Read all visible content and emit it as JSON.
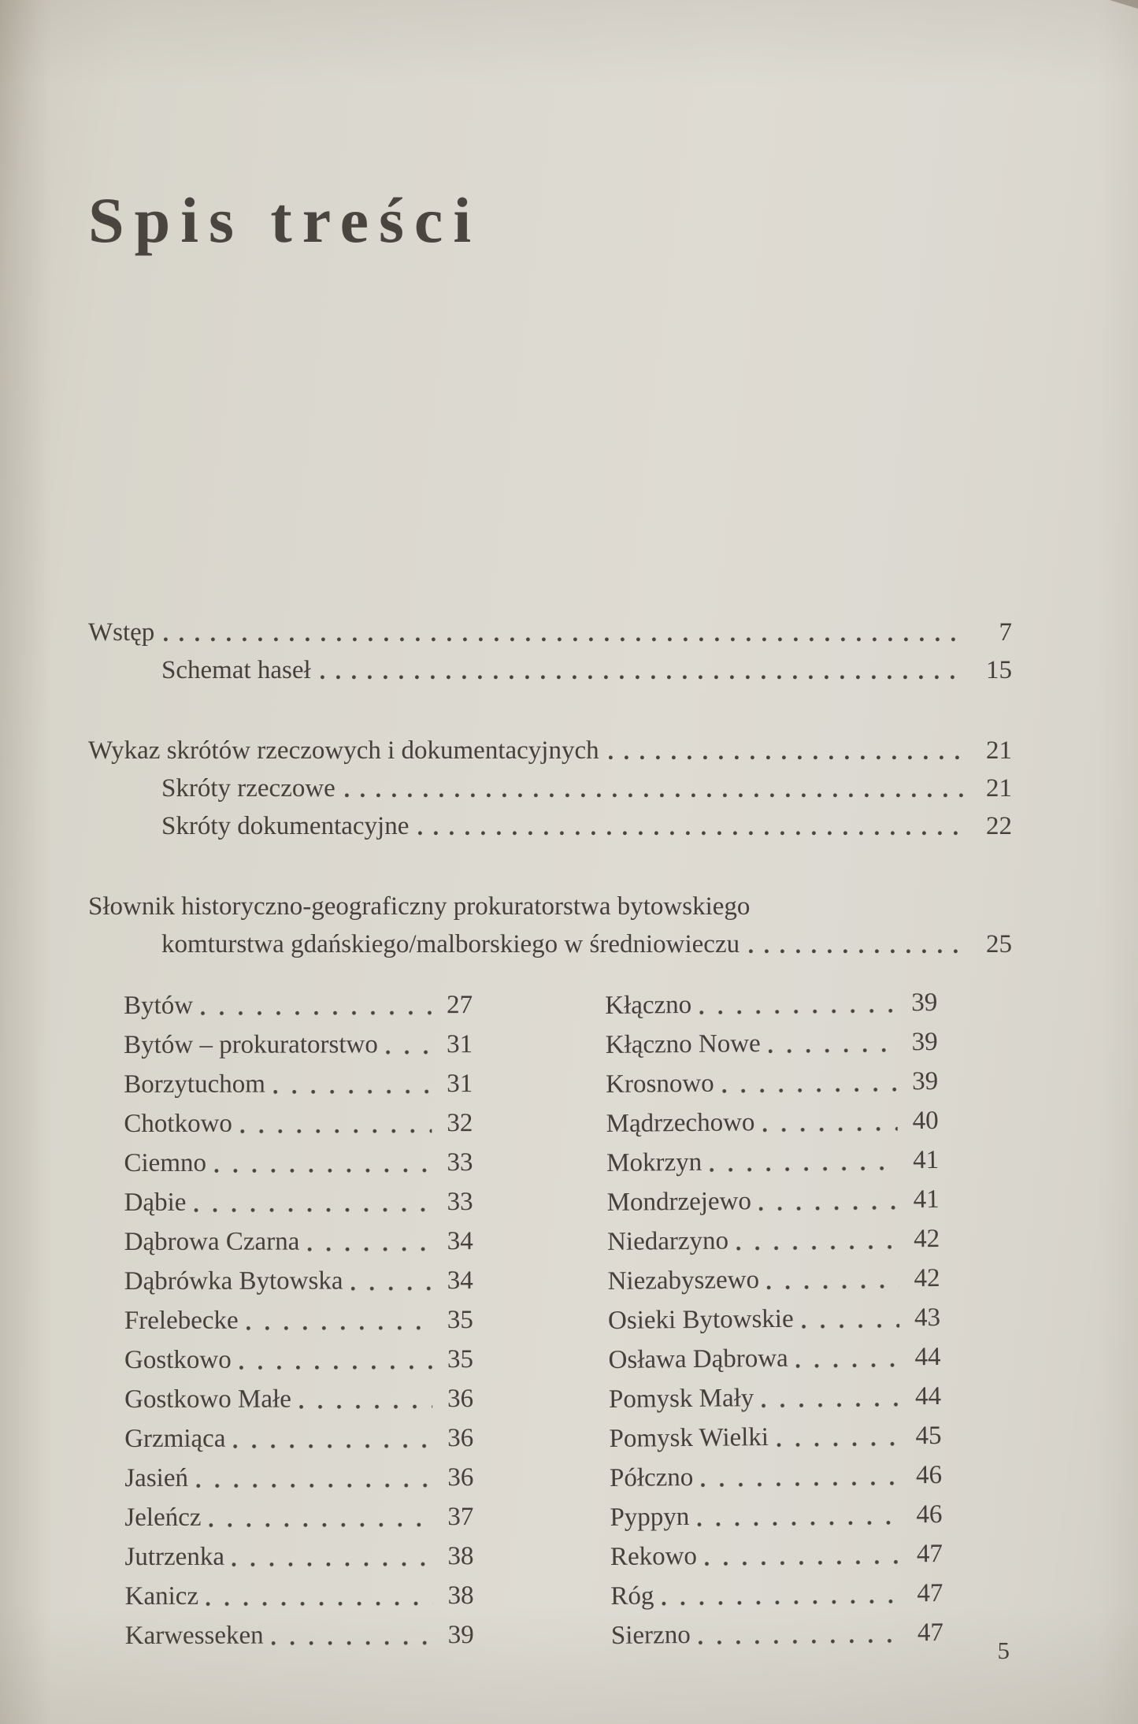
{
  "page": {
    "title": "Spis treści",
    "folio": "5"
  },
  "toc": {
    "main_rows": [
      {
        "label": "Wstęp",
        "page": "7"
      },
      {
        "label": "Schemat haseł",
        "page": "15",
        "indent": true
      },
      {
        "label": "Wykaz skrótów rzeczowych i dokumentacyjnych",
        "page": "21",
        "gap": true
      },
      {
        "label": "Skróty rzeczowe",
        "page": "21",
        "indent": true
      },
      {
        "label": "Skróty dokumentacyjne",
        "page": "22",
        "indent": true
      },
      {
        "label": "Słownik historyczno-geograficzny prokuratorstwa bytowskiego",
        "gap": true
      },
      {
        "label": "komturstwa gdańskiego/malborskiego w średniowieczu",
        "page": "25",
        "indent": true
      }
    ],
    "entries_left": [
      {
        "label": "Bytów",
        "page": "27"
      },
      {
        "label": "Bytów – prokuratorstwo",
        "page": "31"
      },
      {
        "label": "Borzytuchom",
        "page": "31"
      },
      {
        "label": "Chotkowo",
        "page": "32"
      },
      {
        "label": "Ciemno",
        "page": "33"
      },
      {
        "label": "Dąbie",
        "page": "33"
      },
      {
        "label": "Dąbrowa Czarna",
        "page": "34"
      },
      {
        "label": "Dąbrówka Bytowska",
        "page": "34"
      },
      {
        "label": "Frelebecke",
        "page": "35"
      },
      {
        "label": "Gostkowo",
        "page": "35"
      },
      {
        "label": "Gostkowo Małe",
        "page": "36"
      },
      {
        "label": "Grzmiąca",
        "page": "36"
      },
      {
        "label": "Jasień",
        "page": "36"
      },
      {
        "label": "Jeleńcz",
        "page": "37"
      },
      {
        "label": "Jutrzenka",
        "page": "38"
      },
      {
        "label": "Kanicz",
        "page": "38"
      },
      {
        "label": "Karwesseken",
        "page": "39"
      }
    ],
    "entries_right": [
      {
        "label": "Kłączno",
        "page": "39"
      },
      {
        "label": "Kłączno Nowe",
        "page": "39"
      },
      {
        "label": "Krosnowo",
        "page": "39"
      },
      {
        "label": "Mądrzechowo",
        "page": "40"
      },
      {
        "label": "Mokrzyn",
        "page": "41"
      },
      {
        "label": "Mondrzejewo",
        "page": "41"
      },
      {
        "label": "Niedarzyno",
        "page": "42"
      },
      {
        "label": "Niezabyszewo",
        "page": "42"
      },
      {
        "label": "Osieki Bytowskie",
        "page": "43"
      },
      {
        "label": "Osława Dąbrowa",
        "page": "44"
      },
      {
        "label": "Pomysk Mały",
        "page": "44"
      },
      {
        "label": "Pomysk Wielki",
        "page": "45"
      },
      {
        "label": "Półczno",
        "page": "46"
      },
      {
        "label": "Pyppyn",
        "page": "46"
      },
      {
        "label": "Rekowo",
        "page": "47"
      },
      {
        "label": "Róg",
        "page": "47"
      },
      {
        "label": "Sierzno",
        "page": "47"
      }
    ]
  }
}
